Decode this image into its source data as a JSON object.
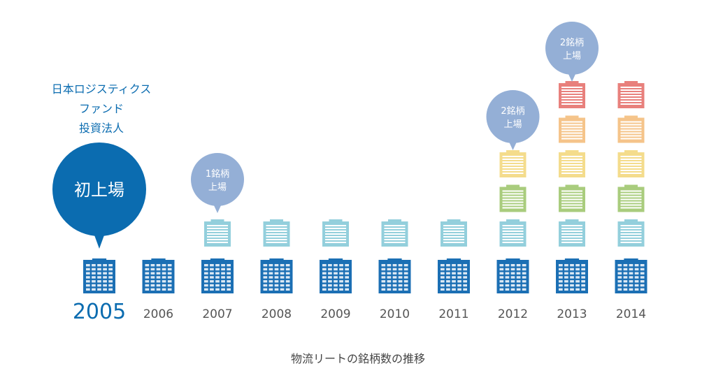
{
  "chart_data": {
    "type": "bar",
    "title": "物流リートの銘柄数の推移",
    "categories": [
      "2005",
      "2006",
      "2007",
      "2008",
      "2009",
      "2010",
      "2011",
      "2012",
      "2013",
      "2014"
    ],
    "values": [
      1,
      1,
      2,
      2,
      2,
      2,
      2,
      4,
      6,
      6
    ],
    "highlight_category": "2005",
    "annotation": {
      "category": "2005",
      "lines": [
        "日本ロジスティクス",
        "ファンド",
        "投資法人"
      ],
      "bubble": "初上場"
    },
    "listings": [
      {
        "category": "2007",
        "line1": "1銘柄",
        "line2": "上場"
      },
      {
        "category": "2012",
        "line1": "2銘柄",
        "line2": "上場"
      },
      {
        "category": "2013",
        "line1": "2銘柄",
        "line2": "上場"
      }
    ],
    "colors": {
      "base": "#1b6fb4",
      "level2": "#93cfdc",
      "level3": "#a9cc7d",
      "level4": "#f4dc8c",
      "level5": "#f5c48a",
      "level6": "#e8807c",
      "bubble_main": "#0b6cb0",
      "bubble_small": "#94afd6",
      "year_text": "#555555",
      "year_highlight": "#0b6cb0"
    }
  }
}
